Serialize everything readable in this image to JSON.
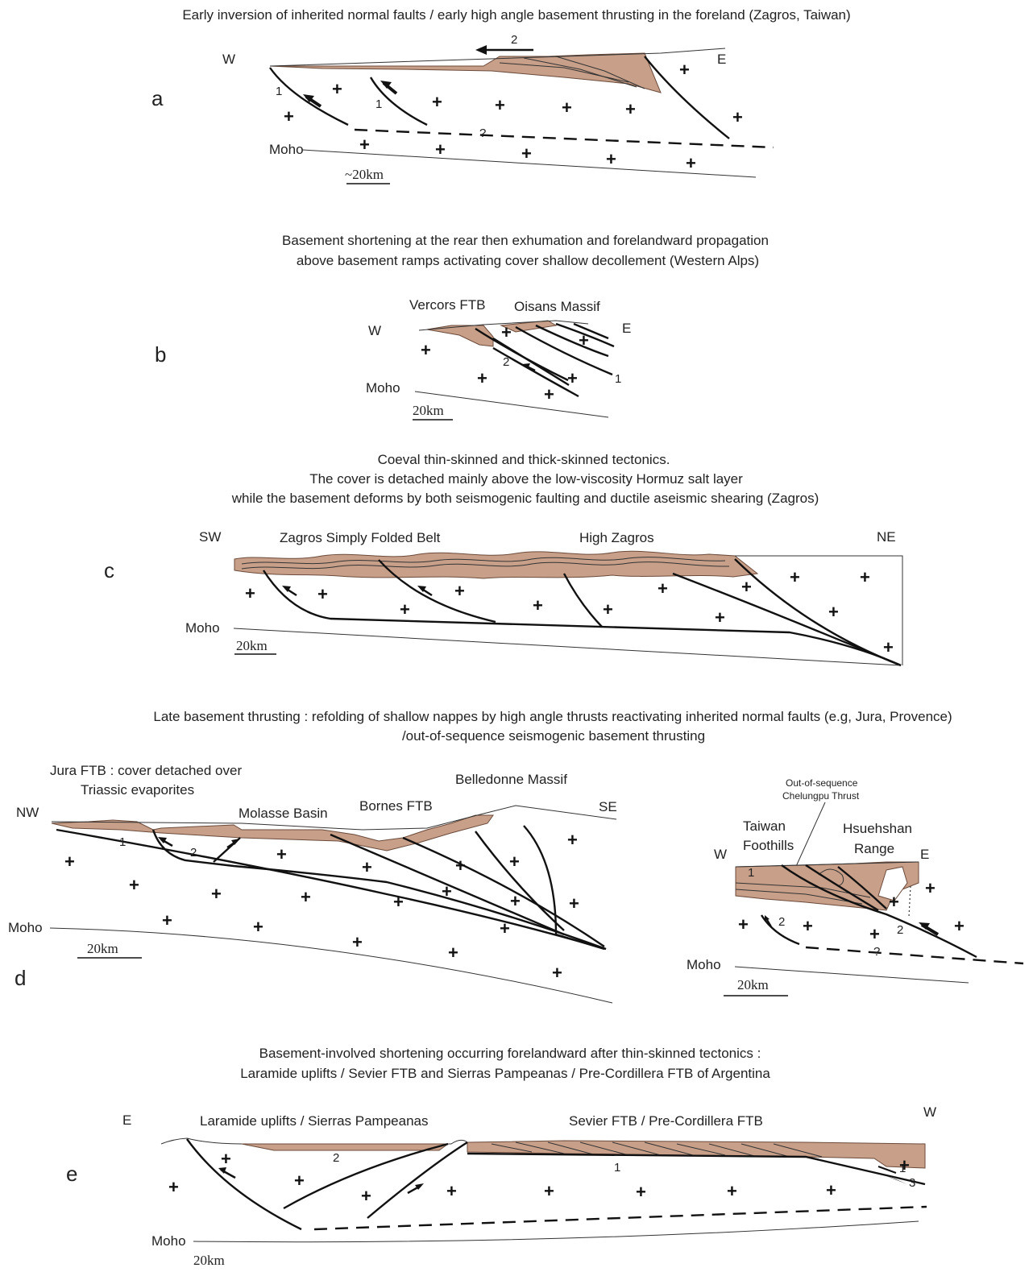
{
  "panels": {
    "a": {
      "letter": "a",
      "caption": "Early inversion of inherited normal faults / early high angle basement thrusting in the foreland (Zagros, Taiwan)",
      "west": "W",
      "east": "E",
      "moho": "Moho",
      "scale": "~20km",
      "n1": "1",
      "n2": "2",
      "q": "?"
    },
    "b": {
      "letter": "b",
      "caption_line1": "Basement shortening at the rear then exhumation and forelandward propagation",
      "caption_line2": "above basement ramps activating cover shallow decollement (Western Alps)",
      "west": "W",
      "east": "E",
      "moho": "Moho",
      "scale": "20km",
      "vercors": "Vercors FTB",
      "oisans": "Oisans Massif",
      "n1": "1",
      "n2": "2"
    },
    "c": {
      "letter": "c",
      "caption_line1": "Coeval thin-skinned and thick-skinned tectonics.",
      "caption_line2": "The cover is detached mainly above the low-viscosity Hormuz salt layer",
      "caption_line3": "while the basement deforms by both seismogenic faulting and ductile aseismic shearing (Zagros)",
      "sw": "SW",
      "ne": "NE",
      "moho": "Moho",
      "scale": "20km",
      "sfb": "Zagros Simply Folded Belt",
      "hz": "High Zagros"
    },
    "d": {
      "letter": "d",
      "caption_line1": "Late basement thrusting : refolding of shallow nappes by high angle thrusts reactivating inherited normal faults (e.g, Jura, Provence)",
      "caption_line2": "/out-of-sequence seismogenic basement thrusting",
      "jura1": "Jura FTB : cover detached over",
      "jura2": "Triassic evaporites",
      "molasse": "Molasse Basin",
      "bornes": "Bornes FTB",
      "belledonne": "Belledonne Massif",
      "nw": "NW",
      "se": "SE",
      "moho": "Moho",
      "scale": "20km",
      "oos1": "Out-of-sequence",
      "oos2": "Chelungpu Thrust",
      "taiwan1": "Taiwan",
      "taiwan2": "Foothills",
      "hsueh1": "Hsuehshan",
      "hsueh2": "Range",
      "west": "W",
      "east": "E",
      "moho2": "Moho",
      "scale2": "20km",
      "n1": "1",
      "n2": "2",
      "q": "?"
    },
    "e": {
      "letter": "e",
      "caption_line1": "Basement-involved shortening occurring forelandward after thin-skinned tectonics :",
      "caption_line2": "Laramide uplifts / Sevier FTB   and  Sierras Pampeanas / Pre-Cordillera FTB of Argentina",
      "east": "E",
      "west": "W",
      "moho": "Moho",
      "scale": "20km",
      "laramide": "Laramide uplifts / Sierras Pampeanas",
      "sevier": "Sevier FTB /  Pre-Cordillera FTB",
      "n1": "1",
      "n2": "2",
      "n3": "3"
    }
  },
  "colors": {
    "sediment": "#c8a08a",
    "ink": "#111111"
  },
  "plus_symbol": "+"
}
